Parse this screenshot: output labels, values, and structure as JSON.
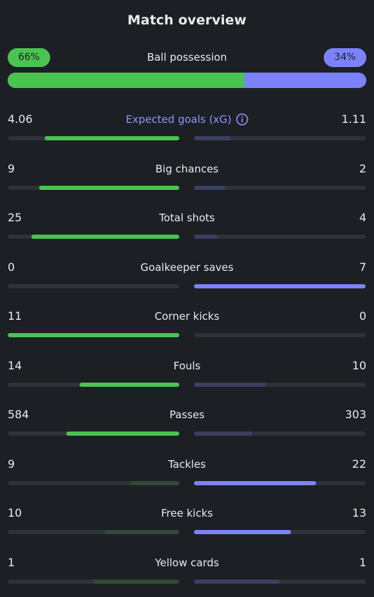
{
  "title": "Match overview",
  "colors": {
    "home": "#4ac451",
    "away": "#7c83fa",
    "accent": "#8f95ff",
    "background": "#1c2025"
  },
  "possession": {
    "label": "Ball possession",
    "home_text": "66%",
    "away_text": "34%",
    "home_percent": 66,
    "away_percent": 34
  },
  "stats": [
    {
      "name": "Expected goals (xG)",
      "home": "4.06",
      "away": "1.11",
      "home_value": 4.06,
      "away_value": 1.11,
      "accent": true,
      "info_icon": "info-icon"
    },
    {
      "name": "Big chances",
      "home": "9",
      "away": "2",
      "home_value": 9,
      "away_value": 2
    },
    {
      "name": "Total shots",
      "home": "25",
      "away": "4",
      "home_value": 25,
      "away_value": 4
    },
    {
      "name": "Goalkeeper saves",
      "home": "0",
      "away": "7",
      "home_value": 0,
      "away_value": 7
    },
    {
      "name": "Corner kicks",
      "home": "11",
      "away": "0",
      "home_value": 11,
      "away_value": 0
    },
    {
      "name": "Fouls",
      "home": "14",
      "away": "10",
      "home_value": 14,
      "away_value": 10
    },
    {
      "name": "Passes",
      "home": "584",
      "away": "303",
      "home_value": 584,
      "away_value": 303
    },
    {
      "name": "Tackles",
      "home": "9",
      "away": "22",
      "home_value": 9,
      "away_value": 22
    },
    {
      "name": "Free kicks",
      "home": "10",
      "away": "13",
      "home_value": 10,
      "away_value": 13
    },
    {
      "name": "Yellow cards",
      "home": "1",
      "away": "1",
      "home_value": 1,
      "away_value": 1
    }
  ]
}
